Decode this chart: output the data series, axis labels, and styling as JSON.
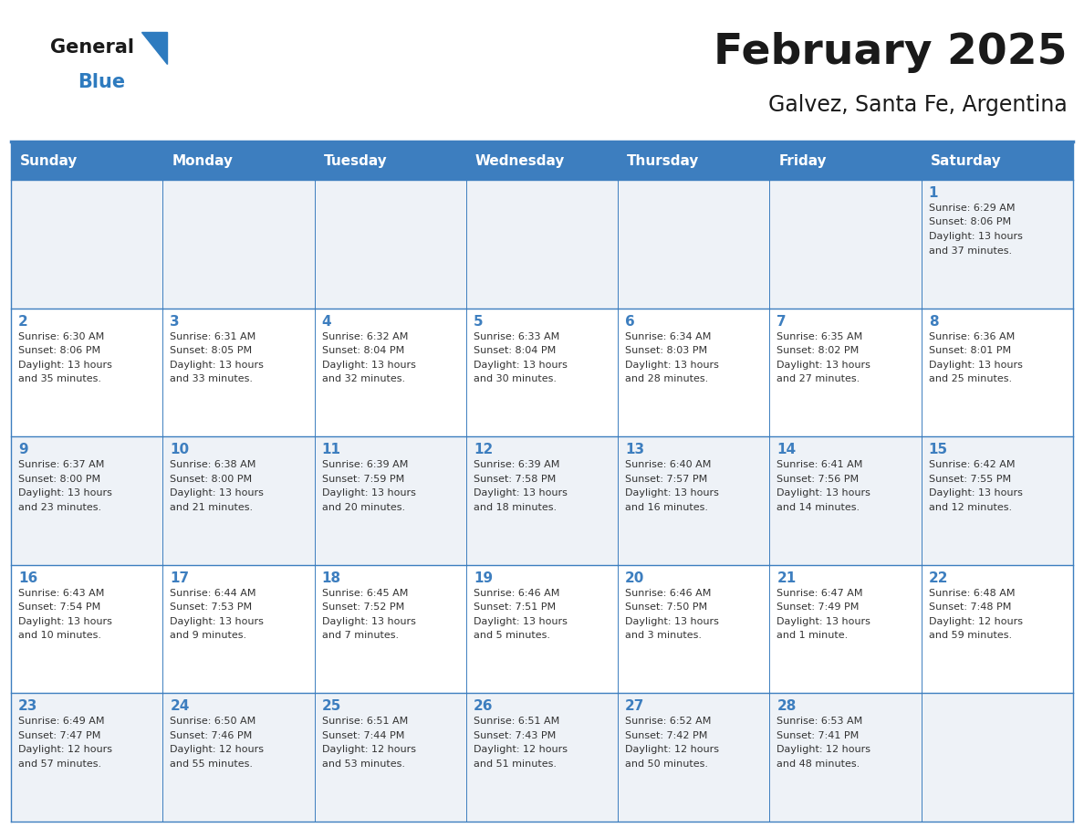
{
  "title": "February 2025",
  "subtitle": "Galvez, Santa Fe, Argentina",
  "header_color": "#3d7ebf",
  "header_text_color": "#ffffff",
  "cell_bg_colors": [
    "#eef2f7",
    "#ffffff"
  ],
  "border_color": "#3d7ebf",
  "day_names": [
    "Sunday",
    "Monday",
    "Tuesday",
    "Wednesday",
    "Thursday",
    "Friday",
    "Saturday"
  ],
  "title_color": "#1a1a1a",
  "subtitle_color": "#1a1a1a",
  "cell_text_color": "#333333",
  "day_num_color": "#3d7ebf",
  "logo_general_color": "#1a1a1a",
  "logo_blue_color": "#2e7bbf",
  "logo_triangle_color": "#2e7bbf",
  "calendar_data": [
    [
      null,
      null,
      null,
      null,
      null,
      null,
      {
        "day": "1",
        "sunrise": "6:29 AM",
        "sunset": "8:06 PM",
        "daylight_h": "13 hours",
        "daylight_m": "37 minutes"
      }
    ],
    [
      {
        "day": "2",
        "sunrise": "6:30 AM",
        "sunset": "8:06 PM",
        "daylight_h": "13 hours",
        "daylight_m": "35 minutes"
      },
      {
        "day": "3",
        "sunrise": "6:31 AM",
        "sunset": "8:05 PM",
        "daylight_h": "13 hours",
        "daylight_m": "33 minutes"
      },
      {
        "day": "4",
        "sunrise": "6:32 AM",
        "sunset": "8:04 PM",
        "daylight_h": "13 hours",
        "daylight_m": "32 minutes"
      },
      {
        "day": "5",
        "sunrise": "6:33 AM",
        "sunset": "8:04 PM",
        "daylight_h": "13 hours",
        "daylight_m": "30 minutes"
      },
      {
        "day": "6",
        "sunrise": "6:34 AM",
        "sunset": "8:03 PM",
        "daylight_h": "13 hours",
        "daylight_m": "28 minutes"
      },
      {
        "day": "7",
        "sunrise": "6:35 AM",
        "sunset": "8:02 PM",
        "daylight_h": "13 hours",
        "daylight_m": "27 minutes"
      },
      {
        "day": "8",
        "sunrise": "6:36 AM",
        "sunset": "8:01 PM",
        "daylight_h": "13 hours",
        "daylight_m": "25 minutes"
      }
    ],
    [
      {
        "day": "9",
        "sunrise": "6:37 AM",
        "sunset": "8:00 PM",
        "daylight_h": "13 hours",
        "daylight_m": "23 minutes"
      },
      {
        "day": "10",
        "sunrise": "6:38 AM",
        "sunset": "8:00 PM",
        "daylight_h": "13 hours",
        "daylight_m": "21 minutes"
      },
      {
        "day": "11",
        "sunrise": "6:39 AM",
        "sunset": "7:59 PM",
        "daylight_h": "13 hours",
        "daylight_m": "20 minutes"
      },
      {
        "day": "12",
        "sunrise": "6:39 AM",
        "sunset": "7:58 PM",
        "daylight_h": "13 hours",
        "daylight_m": "18 minutes"
      },
      {
        "day": "13",
        "sunrise": "6:40 AM",
        "sunset": "7:57 PM",
        "daylight_h": "13 hours",
        "daylight_m": "16 minutes"
      },
      {
        "day": "14",
        "sunrise": "6:41 AM",
        "sunset": "7:56 PM",
        "daylight_h": "13 hours",
        "daylight_m": "14 minutes"
      },
      {
        "day": "15",
        "sunrise": "6:42 AM",
        "sunset": "7:55 PM",
        "daylight_h": "13 hours",
        "daylight_m": "12 minutes"
      }
    ],
    [
      {
        "day": "16",
        "sunrise": "6:43 AM",
        "sunset": "7:54 PM",
        "daylight_h": "13 hours",
        "daylight_m": "10 minutes"
      },
      {
        "day": "17",
        "sunrise": "6:44 AM",
        "sunset": "7:53 PM",
        "daylight_h": "13 hours",
        "daylight_m": "9 minutes"
      },
      {
        "day": "18",
        "sunrise": "6:45 AM",
        "sunset": "7:52 PM",
        "daylight_h": "13 hours",
        "daylight_m": "7 minutes"
      },
      {
        "day": "19",
        "sunrise": "6:46 AM",
        "sunset": "7:51 PM",
        "daylight_h": "13 hours",
        "daylight_m": "5 minutes"
      },
      {
        "day": "20",
        "sunrise": "6:46 AM",
        "sunset": "7:50 PM",
        "daylight_h": "13 hours",
        "daylight_m": "3 minutes"
      },
      {
        "day": "21",
        "sunrise": "6:47 AM",
        "sunset": "7:49 PM",
        "daylight_h": "13 hours",
        "daylight_m": "1 minute"
      },
      {
        "day": "22",
        "sunrise": "6:48 AM",
        "sunset": "7:48 PM",
        "daylight_h": "12 hours",
        "daylight_m": "59 minutes"
      }
    ],
    [
      {
        "day": "23",
        "sunrise": "6:49 AM",
        "sunset": "7:47 PM",
        "daylight_h": "12 hours",
        "daylight_m": "57 minutes"
      },
      {
        "day": "24",
        "sunrise": "6:50 AM",
        "sunset": "7:46 PM",
        "daylight_h": "12 hours",
        "daylight_m": "55 minutes"
      },
      {
        "day": "25",
        "sunrise": "6:51 AM",
        "sunset": "7:44 PM",
        "daylight_h": "12 hours",
        "daylight_m": "53 minutes"
      },
      {
        "day": "26",
        "sunrise": "6:51 AM",
        "sunset": "7:43 PM",
        "daylight_h": "12 hours",
        "daylight_m": "51 minutes"
      },
      {
        "day": "27",
        "sunrise": "6:52 AM",
        "sunset": "7:42 PM",
        "daylight_h": "12 hours",
        "daylight_m": "50 minutes"
      },
      {
        "day": "28",
        "sunrise": "6:53 AM",
        "sunset": "7:41 PM",
        "daylight_h": "12 hours",
        "daylight_m": "48 minutes"
      },
      null
    ]
  ]
}
